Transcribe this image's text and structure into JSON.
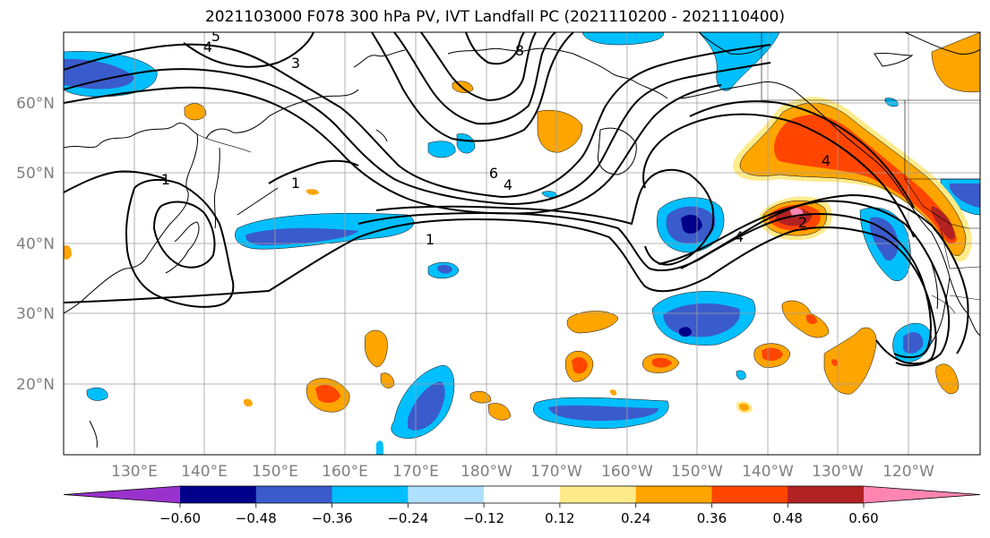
{
  "title": "2021103000 F078 300 hPa PV, IVT Landfall PC (2021110200 - 2021110400)",
  "lat_labels": [
    "60°N",
    "50°N",
    "40°N",
    "30°N",
    "20°N"
  ],
  "lon_labels": [
    "130°E",
    "140°E",
    "150°E",
    "160°E",
    "170°E",
    "180°W",
    "170°W",
    "160°W",
    "150°W",
    "140°W",
    "130°W",
    "120°W"
  ],
  "colorbar": {
    "colors": [
      "#9932CC",
      "#00008B",
      "#3A5BCC",
      "#00BFFF",
      "#B0E0FF",
      "#FFFFFF",
      "#FFEB8A",
      "#FFA500",
      "#FF4500",
      "#B22222",
      "#FF85B0"
    ],
    "ticks": [
      "−0.60",
      "−0.48",
      "−0.36",
      "−0.24",
      "−0.12",
      "0.12",
      "0.24",
      "0.36",
      "0.48",
      "0.60"
    ]
  },
  "contour_labels": [
    "5",
    "4",
    "3",
    "1",
    "1",
    "1",
    "6",
    "4",
    "8",
    "4",
    "2",
    "4"
  ]
}
